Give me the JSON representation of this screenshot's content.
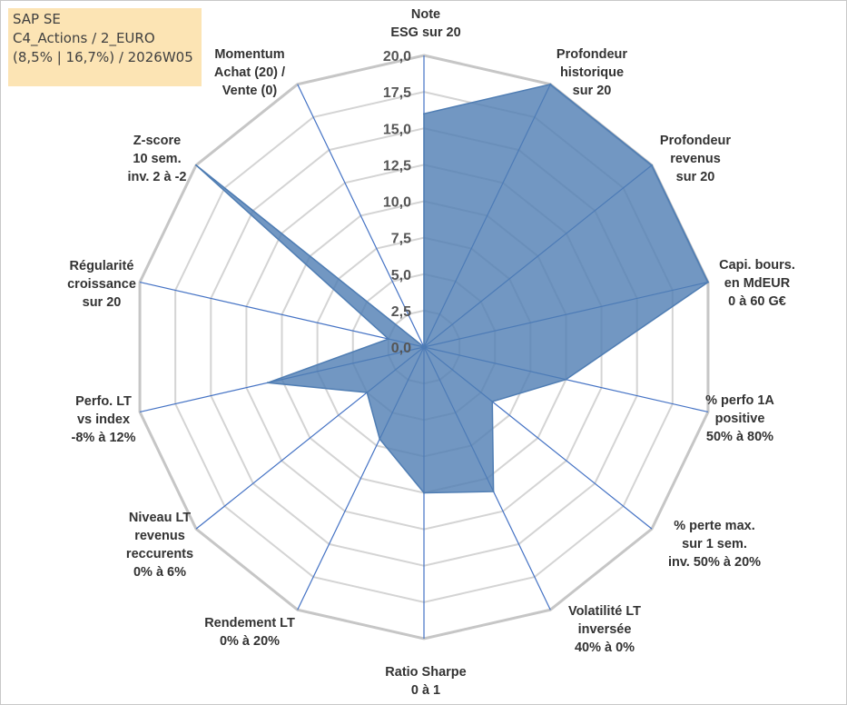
{
  "info_box": {
    "line1": "SAP SE",
    "line2": "C4_Actions / 2_EURO",
    "line3": "(8,5% | 16,7%) / 2026W05"
  },
  "chart_data": {
    "type": "radar",
    "title": "",
    "rlim": [
      0,
      20
    ],
    "tick_values": [
      0,
      2.5,
      5,
      7.5,
      10,
      12.5,
      15,
      17.5,
      20
    ],
    "tick_labels": [
      "0,0",
      "2,5",
      "5,0",
      "7,5",
      "10,0",
      "12,5",
      "15,0",
      "17,5",
      "20,0"
    ],
    "grid": true,
    "axes": [
      {
        "label": [
          "Note",
          "ESG sur 20"
        ]
      },
      {
        "label": [
          "Profondeur",
          "historique",
          "sur 20"
        ]
      },
      {
        "label": [
          "Profondeur",
          "revenus",
          "sur 20"
        ]
      },
      {
        "label": [
          "Capi. bours.",
          "en MdEUR",
          "0 à 60 G€"
        ]
      },
      {
        "label": [
          "% perfo 1A",
          "positive",
          "50% à 80%"
        ]
      },
      {
        "label": [
          "% perte max.",
          "sur 1 sem.",
          "inv. 50% à 20%"
        ]
      },
      {
        "label": [
          "Volatilité LT",
          "inversée",
          "40% à 0%"
        ]
      },
      {
        "label": [
          "Ratio Sharpe",
          "0 à 1"
        ]
      },
      {
        "label": [
          "Rendement LT",
          "0% à 20%"
        ]
      },
      {
        "label": [
          "Niveau LT",
          "revenus",
          "reccurents",
          "0% à 6%"
        ]
      },
      {
        "label": [
          "Perfo. LT",
          "vs index",
          "-8% à 12%"
        ]
      },
      {
        "label": [
          "Régularité",
          "croissance",
          "sur 20"
        ]
      },
      {
        "label": [
          "Z-score",
          "10 sem.",
          "inv. 2 à -2"
        ]
      },
      {
        "label": [
          "Momentum",
          "Achat (20) /",
          "Vente (0)"
        ]
      }
    ],
    "series": [
      {
        "values": [
          16,
          20,
          20,
          20,
          10,
          6,
          11,
          10,
          7,
          5,
          11,
          2.5,
          20,
          0
        ],
        "color": "#4f7db3"
      }
    ]
  }
}
